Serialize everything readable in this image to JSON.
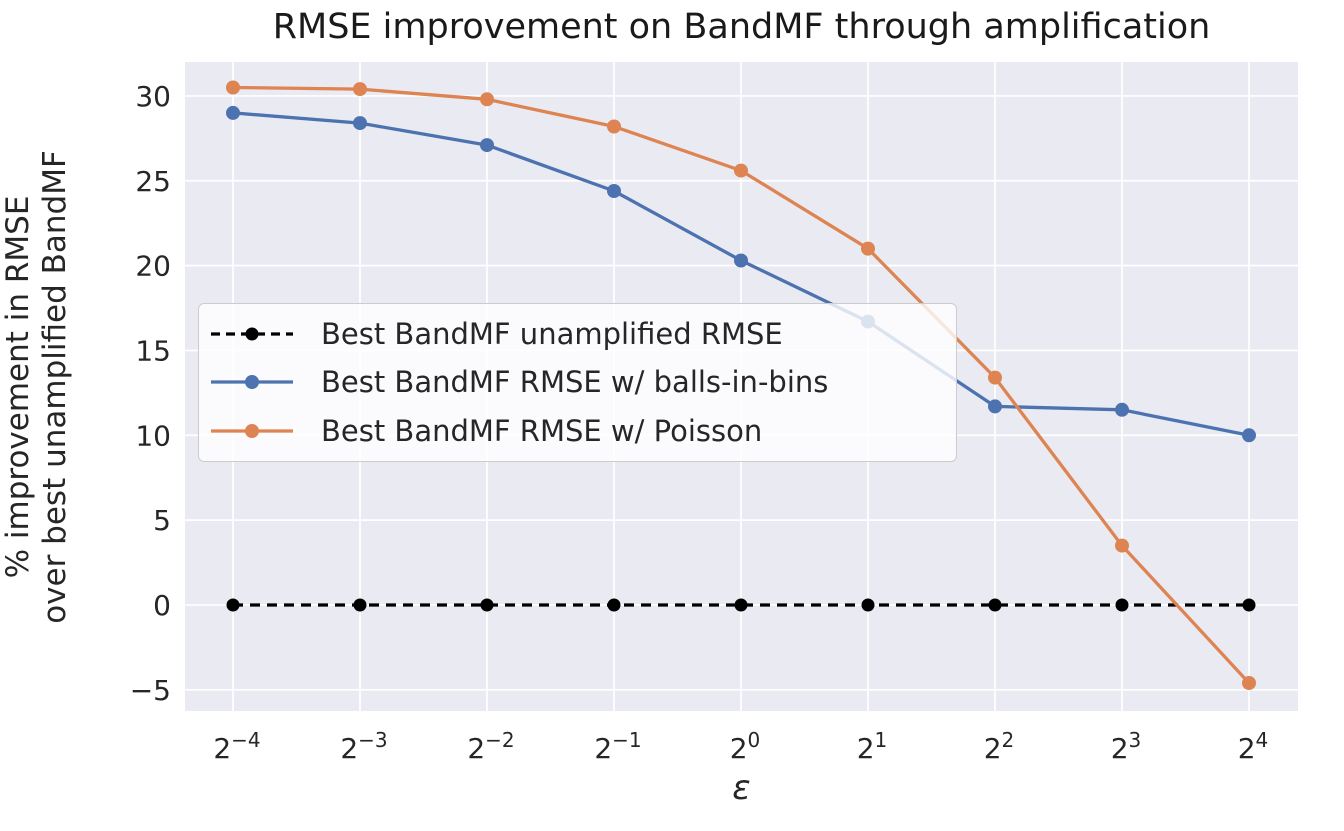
{
  "chart_data": {
    "type": "line",
    "title": "RMSE improvement on BandMF through amplification",
    "xlabel": "ε",
    "ylabel": "% improvement in RMSE\nover best unamplified BandMF",
    "x_values": [
      0.0625,
      0.125,
      0.25,
      0.5,
      1,
      2,
      4,
      8,
      16
    ],
    "xticks": [
      {
        "base": "2",
        "exp": "−4"
      },
      {
        "base": "2",
        "exp": "−3"
      },
      {
        "base": "2",
        "exp": "−2"
      },
      {
        "base": "2",
        "exp": "−1"
      },
      {
        "base": "2",
        "exp": "0"
      },
      {
        "base": "2",
        "exp": "1"
      },
      {
        "base": "2",
        "exp": "2"
      },
      {
        "base": "2",
        "exp": "3"
      },
      {
        "base": "2",
        "exp": "4"
      }
    ],
    "yticks": [
      -5,
      0,
      5,
      10,
      15,
      20,
      25,
      30
    ],
    "ylim": [
      -6.25,
      32.0
    ],
    "grid": true,
    "legend_position": "center left",
    "colors": {
      "plot_background": "#EAEAF2",
      "grid": "#FFFFFF",
      "text": "#262626",
      "legend_border": "#CCCCCC"
    },
    "series": [
      {
        "name": "Best BandMF unamplified RMSE",
        "color": "#000000",
        "style": "dashed",
        "marker": "circle",
        "values": [
          0,
          0,
          0,
          0,
          0,
          0,
          0,
          0,
          0
        ]
      },
      {
        "name": "Best BandMF RMSE w/ balls-in-bins",
        "color": "#4C72B0",
        "style": "solid",
        "marker": "circle",
        "values": [
          29.0,
          28.4,
          27.1,
          24.4,
          20.3,
          16.7,
          11.7,
          11.5,
          10.0
        ]
      },
      {
        "name": "Best BandMF RMSE w/ Poisson",
        "color": "#DD8452",
        "style": "solid",
        "marker": "circle",
        "values": [
          30.5,
          30.4,
          29.8,
          28.2,
          25.6,
          21.0,
          13.4,
          3.5,
          -4.6
        ]
      }
    ]
  }
}
